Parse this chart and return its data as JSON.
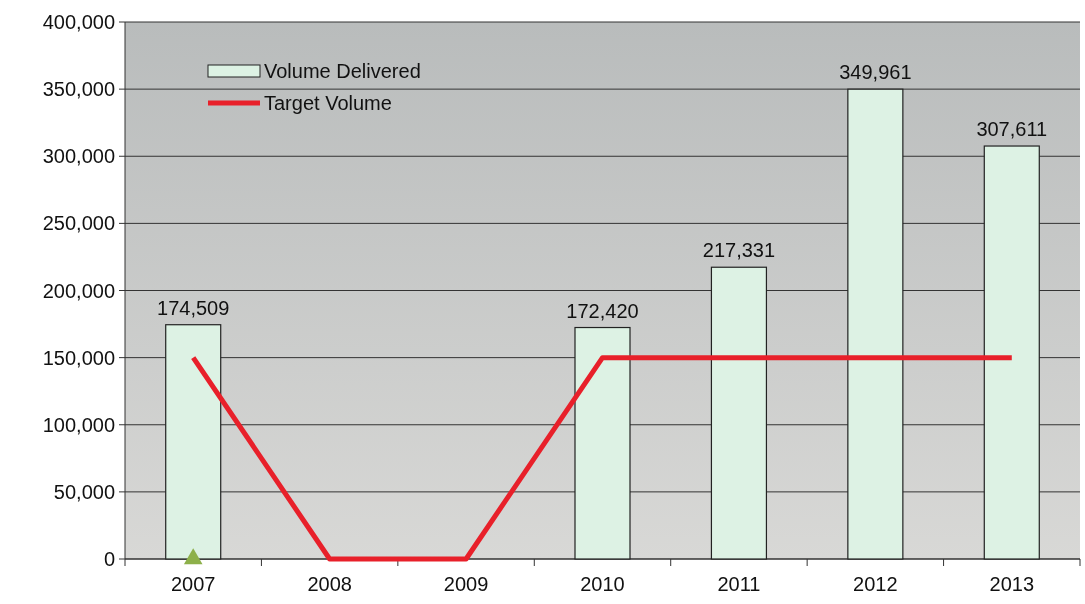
{
  "chart_data": {
    "type": "bar",
    "categories": [
      "2007",
      "2008",
      "2009",
      "2010",
      "2011",
      "2012",
      "2013"
    ],
    "series": [
      {
        "name": "Volume Delivered",
        "color": "#ddf2e4",
        "values": [
          174509,
          null,
          null,
          172420,
          217331,
          349961,
          307611
        ],
        "value_labels": [
          "174,509",
          null,
          null,
          "172,420",
          "217,331",
          "349,961",
          "307,611"
        ]
      },
      {
        "name": "Target Volume",
        "type": "line",
        "color": "#e8202a",
        "values": [
          150000,
          0,
          0,
          150000,
          150000,
          150000,
          150000
        ]
      },
      {
        "type": "scatter",
        "marker": "triangle",
        "color": "#8db04a",
        "values": [
          0,
          null,
          null,
          null,
          null,
          null,
          null
        ]
      }
    ],
    "ylim": [
      0,
      400000
    ],
    "yticks": [
      {
        "value": 0,
        "label": "0"
      },
      {
        "value": 50000,
        "label": "50,000"
      },
      {
        "value": 100000,
        "label": "100,000"
      },
      {
        "value": 150000,
        "label": "150,000"
      },
      {
        "value": 200000,
        "label": "200,000"
      },
      {
        "value": 250000,
        "label": "250,000"
      },
      {
        "value": 300000,
        "label": "300,000"
      },
      {
        "value": 350000,
        "label": "350,000"
      },
      {
        "value": 400000,
        "label": "400,000"
      }
    ],
    "grid": "y",
    "legend": "top left"
  }
}
